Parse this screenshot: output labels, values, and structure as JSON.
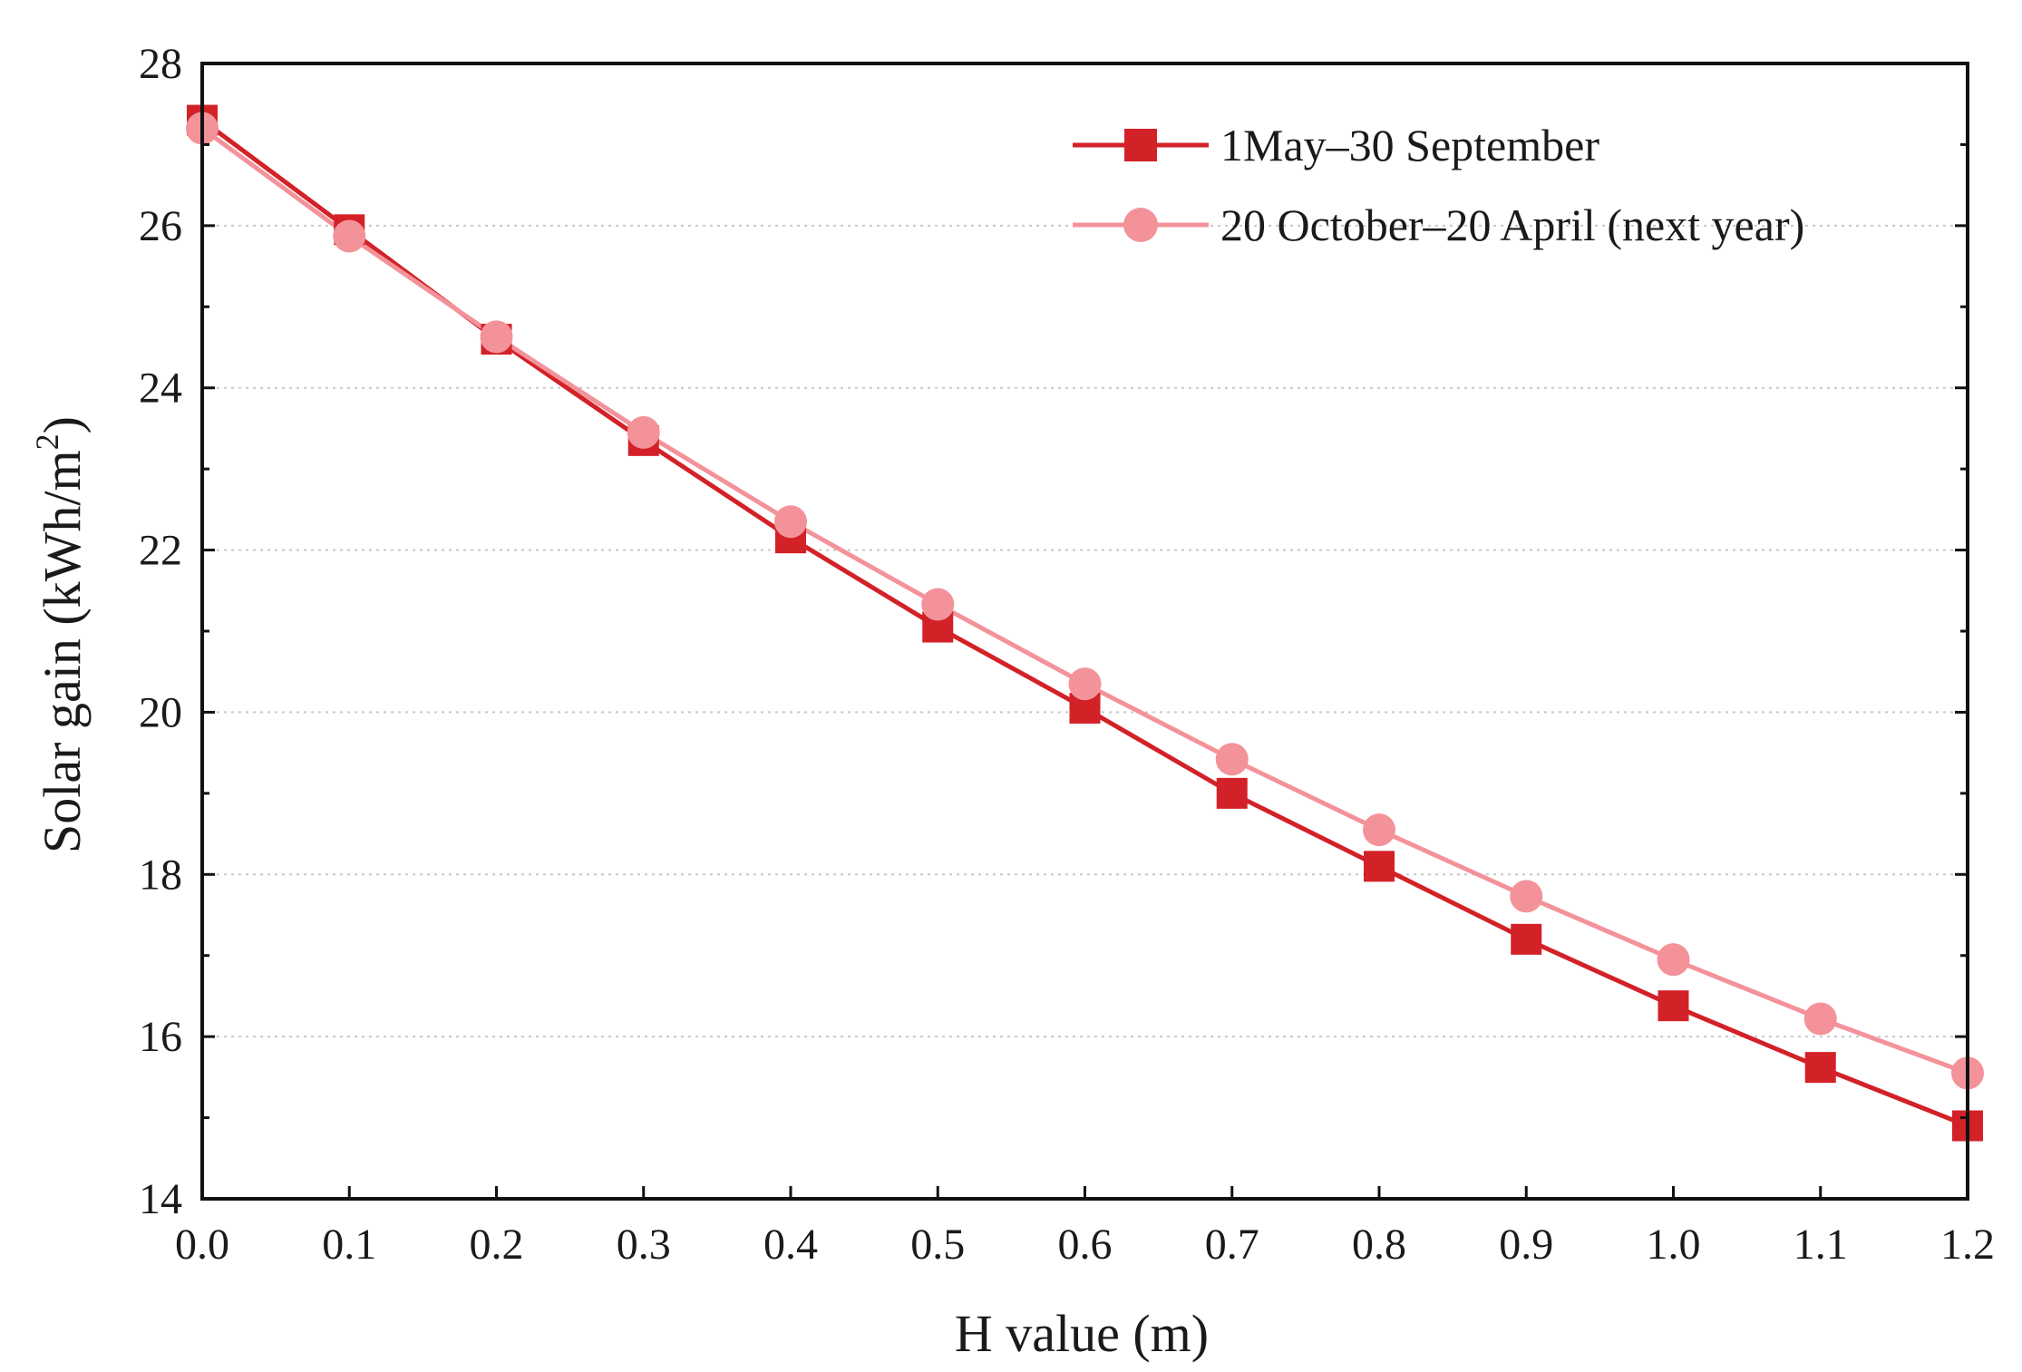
{
  "chart_data": {
    "type": "line",
    "title": "",
    "xlabel": "H value (m)",
    "ylabel": "Solar gain (kWh/m",
    "ylabel_superscript": "2",
    "ylabel_suffix": ")",
    "x": [
      0.0,
      0.1,
      0.2,
      0.3,
      0.4,
      0.5,
      0.6,
      0.7,
      0.8,
      0.9,
      1.0,
      1.1,
      1.2
    ],
    "xlim": [
      0.0,
      1.2
    ],
    "ylim": [
      14,
      28
    ],
    "xticks": [
      0.0,
      0.1,
      0.2,
      0.3,
      0.4,
      0.5,
      0.6,
      0.7,
      0.8,
      0.9,
      1.0,
      1.1,
      1.2
    ],
    "xtick_labels": [
      "0.0",
      "0.1",
      "0.2",
      "0.3",
      "0.4",
      "0.5",
      "0.6",
      "0.7",
      "0.8",
      "0.9",
      "1.0",
      "1.1",
      "1.2"
    ],
    "yticks": [
      14,
      16,
      18,
      20,
      22,
      24,
      26,
      28
    ],
    "ytick_labels": [
      "14",
      "16",
      "18",
      "20",
      "22",
      "24",
      "26",
      "28"
    ],
    "grid": "horizontal dotted",
    "legend_position": "top-right",
    "series": [
      {
        "name": "1May–30 September",
        "marker": "square",
        "color": "#d32128",
        "values": [
          27.3,
          25.95,
          24.6,
          23.35,
          22.15,
          21.05,
          20.05,
          19.0,
          18.1,
          17.2,
          16.38,
          15.62,
          14.9
        ]
      },
      {
        "name": "20 October–20 April (next year)",
        "marker": "circle",
        "color": "#f4929a",
        "values": [
          27.2,
          25.87,
          24.63,
          23.45,
          22.35,
          21.33,
          20.35,
          19.42,
          18.55,
          17.73,
          16.95,
          16.22,
          15.55
        ]
      }
    ]
  }
}
